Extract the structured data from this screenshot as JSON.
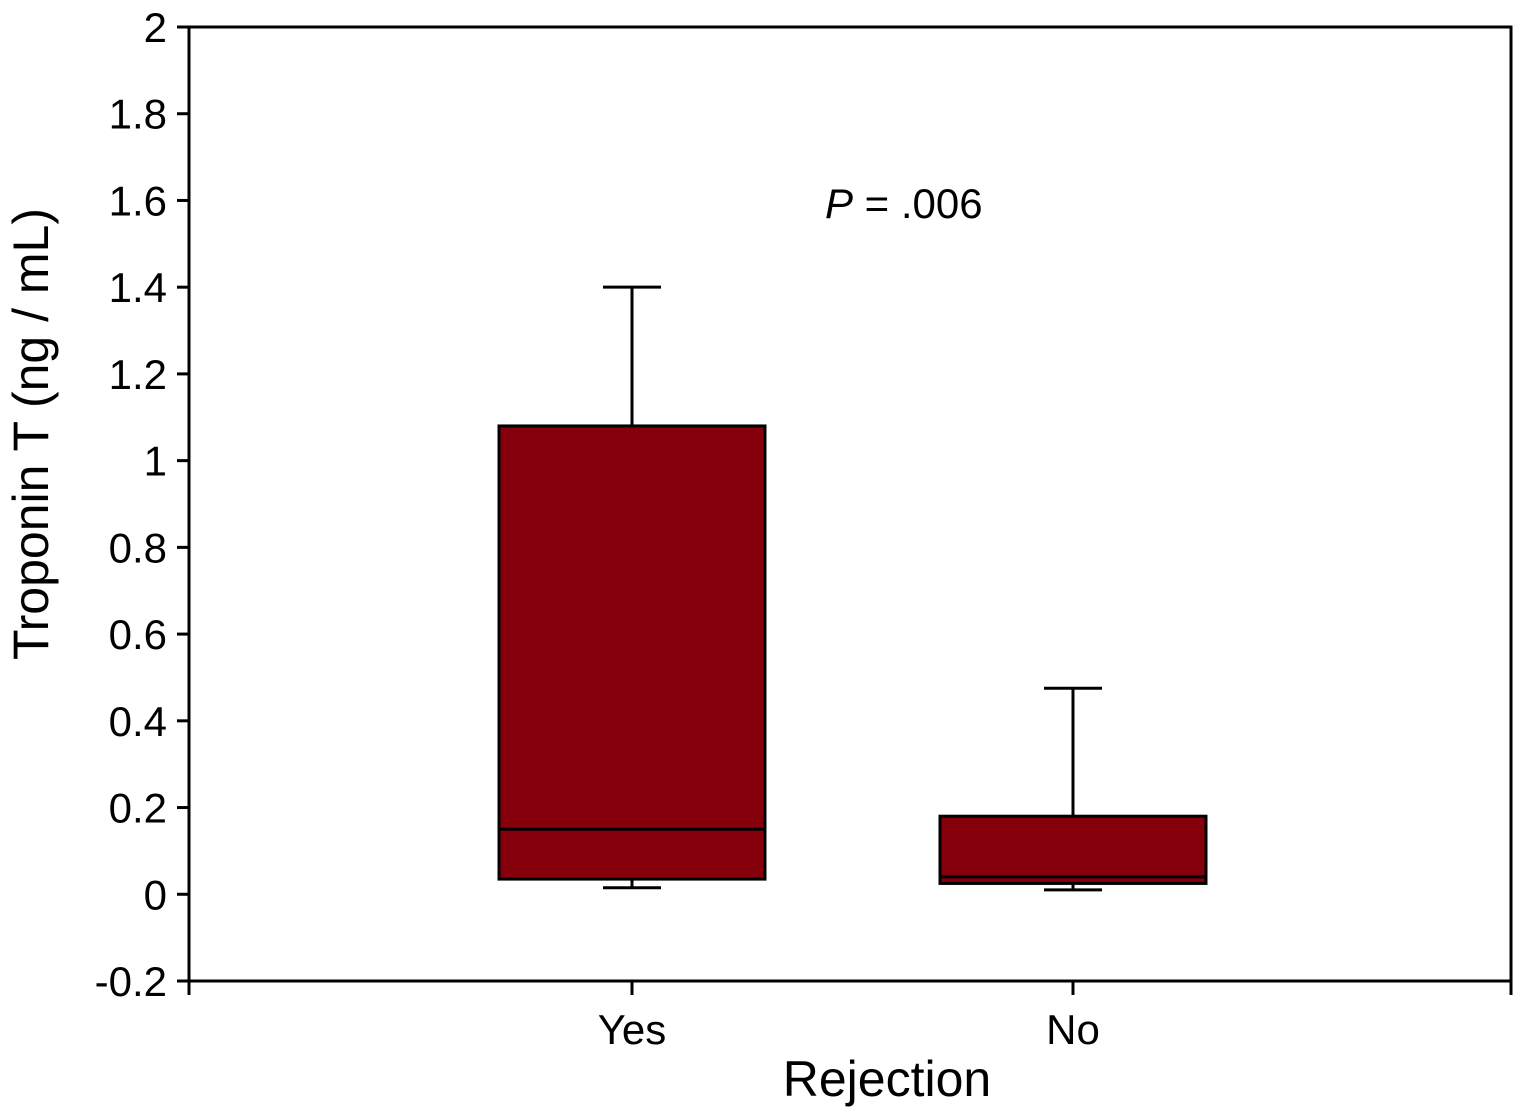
{
  "chart_data": {
    "type": "boxplot",
    "xlabel": "Rejection",
    "ylabel": "Troponin T (ng / mL)",
    "ylim": [
      -0.2,
      2
    ],
    "yticks": [
      -0.2,
      0,
      0.2,
      0.4,
      0.6,
      0.8,
      1,
      1.2,
      1.4,
      1.6,
      1.8,
      2
    ],
    "ytick_labels": [
      "-0.2",
      "0",
      "0.2",
      "0.4",
      "0.6",
      "0.8",
      "1",
      "1.2",
      "1.4",
      "1.6",
      "1.8",
      "2"
    ],
    "categories": [
      "Yes",
      "No"
    ],
    "boxes": [
      {
        "category": "Yes",
        "whisker_low": 0.015,
        "q1": 0.035,
        "median": 0.15,
        "q3": 1.08,
        "whisker_high": 1.4
      },
      {
        "category": "No",
        "whisker_low": 0.01,
        "q1": 0.025,
        "median": 0.04,
        "q3": 0.18,
        "whisker_high": 0.475
      }
    ],
    "annotation": {
      "italic": "P",
      "rest": " = .006"
    },
    "box_color": "#86000b",
    "grid": false
  }
}
